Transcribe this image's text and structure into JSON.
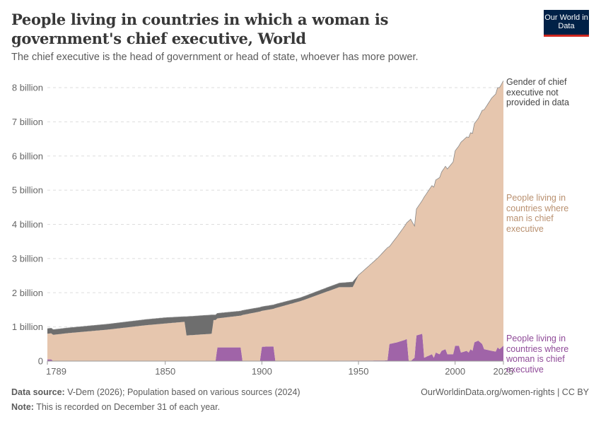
{
  "title": "People living in countries in which a woman is government's chief executive, World",
  "subtitle": "The chief executive is the head of government or head of state, whoever has more power.",
  "logo": "Our World in Data",
  "footer": {
    "source_label": "Data source:",
    "source": "V-Dem (2026); Population based on various sources (2024)",
    "url": "OurWorldinData.org/women-rights | CC BY",
    "note_label": "Note:",
    "note": "This is recorded on December 31 of each year."
  },
  "chart_data": {
    "type": "area",
    "stacked": true,
    "xlim": [
      1789,
      2025
    ],
    "ylim": [
      0,
      8000000000
    ],
    "x_ticks": [
      "1789",
      "1850",
      "1900",
      "1950",
      "2000",
      "2025"
    ],
    "y_ticks": [
      "0",
      "1 billion",
      "2 billion",
      "3 billion",
      "4 billion",
      "5 billion",
      "6 billion",
      "7 billion",
      "8 billion"
    ],
    "grid": "horizontal dashed",
    "unit": "billion",
    "series": [
      {
        "name": "People living in countries where woman is chief executive",
        "color": "#a064a8",
        "points": [
          [
            1789,
            0.05
          ],
          [
            1791,
            0.05
          ],
          [
            1792,
            0
          ],
          [
            1876,
            0
          ],
          [
            1877,
            0.4
          ],
          [
            1889,
            0.4
          ],
          [
            1890,
            0
          ],
          [
            1899,
            0
          ],
          [
            1900,
            0.42
          ],
          [
            1906,
            0.43
          ],
          [
            1907,
            0
          ],
          [
            1965,
            0.02
          ],
          [
            1966,
            0.5
          ],
          [
            1970,
            0.55
          ],
          [
            1974,
            0.62
          ],
          [
            1975,
            0.65
          ],
          [
            1976,
            0
          ],
          [
            1977,
            0
          ],
          [
            1979,
            0.1
          ],
          [
            1980,
            0.75
          ],
          [
            1983,
            0.8
          ],
          [
            1984,
            0.1
          ],
          [
            1986,
            0.15
          ],
          [
            1988,
            0.2
          ],
          [
            1989,
            0.1
          ],
          [
            1990,
            0.25
          ],
          [
            1992,
            0.2
          ],
          [
            1993,
            0.3
          ],
          [
            1995,
            0.35
          ],
          [
            1996,
            0.2
          ],
          [
            1999,
            0.2
          ],
          [
            2000,
            0.45
          ],
          [
            2002,
            0.45
          ],
          [
            2003,
            0.25
          ],
          [
            2006,
            0.3
          ],
          [
            2007,
            0.25
          ],
          [
            2008,
            0.35
          ],
          [
            2009,
            0.3
          ],
          [
            2010,
            0.55
          ],
          [
            2012,
            0.6
          ],
          [
            2014,
            0.5
          ],
          [
            2015,
            0.35
          ],
          [
            2019,
            0.3
          ],
          [
            2021,
            0.28
          ],
          [
            2022,
            0.4
          ],
          [
            2023,
            0.35
          ],
          [
            2024,
            0.4
          ],
          [
            2025,
            0.45
          ]
        ]
      },
      {
        "name": "People living in countries where man is chief executive",
        "color": "#e6c6ae",
        "points": [
          [
            1789,
            0.75
          ],
          [
            1800,
            0.82
          ],
          [
            1820,
            0.92
          ],
          [
            1840,
            1.05
          ],
          [
            1850,
            1.1
          ],
          [
            1860,
            1.15
          ],
          [
            1861,
            0.75
          ],
          [
            1874,
            0.8
          ],
          [
            1875,
            1.2
          ],
          [
            1876,
            1.2
          ],
          [
            1877,
            0.85
          ],
          [
            1889,
            0.93
          ],
          [
            1890,
            1.35
          ],
          [
            1899,
            1.45
          ],
          [
            1900,
            1.05
          ],
          [
            1906,
            1.1
          ],
          [
            1907,
            1.55
          ],
          [
            1920,
            1.75
          ],
          [
            1930,
            1.95
          ],
          [
            1940,
            2.15
          ],
          [
            1947,
            2.15
          ],
          [
            1950,
            2.5
          ],
          [
            1960,
            3.0
          ],
          [
            1965,
            3.3
          ],
          [
            1966,
            2.85
          ],
          [
            1975,
            3.4
          ],
          [
            1976,
            4.1
          ],
          [
            1977,
            4.15
          ],
          [
            1980,
            3.7
          ],
          [
            1983,
            3.9
          ],
          [
            1984,
            4.7
          ],
          [
            1990,
            5.05
          ],
          [
            1995,
            5.35
          ],
          [
            2000,
            5.7
          ],
          [
            2002,
            5.85
          ],
          [
            2003,
            6.15
          ],
          [
            2010,
            6.4
          ],
          [
            2012,
            6.5
          ],
          [
            2015,
            7.0
          ],
          [
            2019,
            7.4
          ],
          [
            2022,
            7.6
          ],
          [
            2025,
            7.75
          ]
        ]
      },
      {
        "name": "Gender of chief executive not provided in data",
        "color": "#6e6e6e",
        "points": [
          [
            1789,
            0.15
          ],
          [
            1850,
            0.17
          ],
          [
            1860,
            0.15
          ],
          [
            1861,
            0.55
          ],
          [
            1874,
            0.55
          ],
          [
            1875,
            0.15
          ],
          [
            1900,
            0.12
          ],
          [
            1920,
            0.1
          ],
          [
            1940,
            0.12
          ],
          [
            1947,
            0.15
          ],
          [
            1950,
            0
          ],
          [
            2025,
            0
          ]
        ]
      }
    ],
    "labels": {
      "unknown": "Gender of chief executive not provided in data",
      "men": "People living in countries where man is chief executive",
      "women": "People living in countries where woman is chief executive"
    }
  }
}
